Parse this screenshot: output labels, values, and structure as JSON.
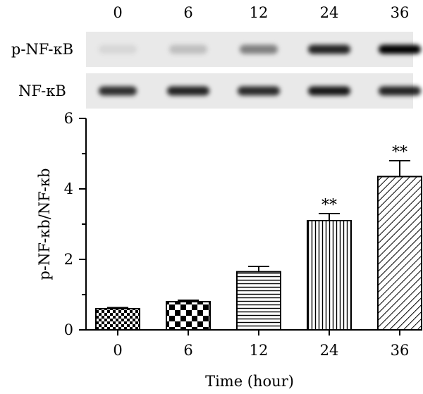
{
  "blot": {
    "lanes": [
      "0",
      "6",
      "12",
      "24",
      "36"
    ],
    "rows": [
      {
        "label": "p-NF-κB",
        "intensities": [
          0.08,
          0.18,
          0.45,
          0.85,
          1.0
        ]
      },
      {
        "label": "NF-κB",
        "intensities": [
          0.8,
          0.85,
          0.82,
          0.9,
          0.85
        ]
      }
    ]
  },
  "chart_data": {
    "type": "bar",
    "categories": [
      "0",
      "6",
      "12",
      "24",
      "36"
    ],
    "values": [
      0.6,
      0.8,
      1.65,
      3.1,
      4.35
    ],
    "errors": [
      0.03,
      0.04,
      0.15,
      0.2,
      0.45
    ],
    "significance": [
      "",
      "",
      "",
      "**",
      "**"
    ],
    "patterns": [
      "small-checker",
      "large-checker",
      "horizontal-lines",
      "vertical-lines",
      "diagonal-lines"
    ],
    "ylabel": "p-NF-κb/NF-κb",
    "xlabel": "Time (hour)",
    "ylim": [
      0,
      6
    ],
    "yticks": [
      0,
      2,
      4,
      6
    ],
    "minor_yticks": [
      1,
      3,
      5
    ],
    "colors": {
      "bar": "#000000",
      "fill": "#ffffff",
      "blot_bg": "#e9e9e9"
    }
  }
}
